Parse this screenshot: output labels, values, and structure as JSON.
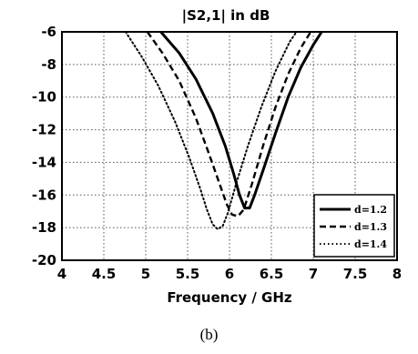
{
  "caption": "(b)",
  "chart_data": {
    "type": "line",
    "title": "|S2,1| in dB",
    "xlabel": "Frequency / GHz",
    "ylabel": "",
    "xlim": [
      4,
      8
    ],
    "ylim": [
      -20,
      -6
    ],
    "xticks": [
      "4",
      "4.5",
      "5",
      "5.5",
      "6",
      "6.5",
      "7",
      "7.5",
      "8"
    ],
    "yticks": [
      "-6",
      "-8",
      "-10",
      "-12",
      "-14",
      "-16",
      "-18",
      "-20"
    ],
    "grid": true,
    "legend_position": "bottom-right",
    "series": [
      {
        "name": "d=1.2",
        "style": "solid",
        "points": [
          [
            5.18,
            -6
          ],
          [
            5.4,
            -7.3
          ],
          [
            5.6,
            -8.9
          ],
          [
            5.8,
            -11.0
          ],
          [
            5.95,
            -13.0
          ],
          [
            6.05,
            -14.7
          ],
          [
            6.12,
            -16.0
          ],
          [
            6.18,
            -16.8
          ],
          [
            6.24,
            -16.8
          ],
          [
            6.3,
            -16.0
          ],
          [
            6.4,
            -14.5
          ],
          [
            6.55,
            -12.2
          ],
          [
            6.7,
            -10.0
          ],
          [
            6.85,
            -8.2
          ],
          [
            7.0,
            -6.8
          ],
          [
            7.1,
            -6
          ]
        ]
      },
      {
        "name": "d=1.3",
        "style": "dashed",
        "points": [
          [
            5.02,
            -6
          ],
          [
            5.2,
            -7.3
          ],
          [
            5.4,
            -9.0
          ],
          [
            5.6,
            -11.3
          ],
          [
            5.75,
            -13.4
          ],
          [
            5.88,
            -15.3
          ],
          [
            5.97,
            -16.6
          ],
          [
            6.03,
            -17.2
          ],
          [
            6.1,
            -17.3
          ],
          [
            6.17,
            -16.9
          ],
          [
            6.27,
            -15.3
          ],
          [
            6.4,
            -13.0
          ],
          [
            6.55,
            -10.6
          ],
          [
            6.7,
            -8.6
          ],
          [
            6.85,
            -7.0
          ],
          [
            6.97,
            -6
          ]
        ]
      },
      {
        "name": "d=1.4",
        "style": "dotted",
        "points": [
          [
            4.76,
            -6
          ],
          [
            4.95,
            -7.5
          ],
          [
            5.15,
            -9.3
          ],
          [
            5.35,
            -11.5
          ],
          [
            5.52,
            -13.7
          ],
          [
            5.65,
            -15.6
          ],
          [
            5.73,
            -16.9
          ],
          [
            5.8,
            -17.8
          ],
          [
            5.86,
            -18.1
          ],
          [
            5.92,
            -17.9
          ],
          [
            5.98,
            -17.1
          ],
          [
            6.08,
            -15.3
          ],
          [
            6.22,
            -13.0
          ],
          [
            6.38,
            -10.6
          ],
          [
            6.55,
            -8.4
          ],
          [
            6.72,
            -6.6
          ],
          [
            6.8,
            -6
          ]
        ]
      }
    ]
  }
}
